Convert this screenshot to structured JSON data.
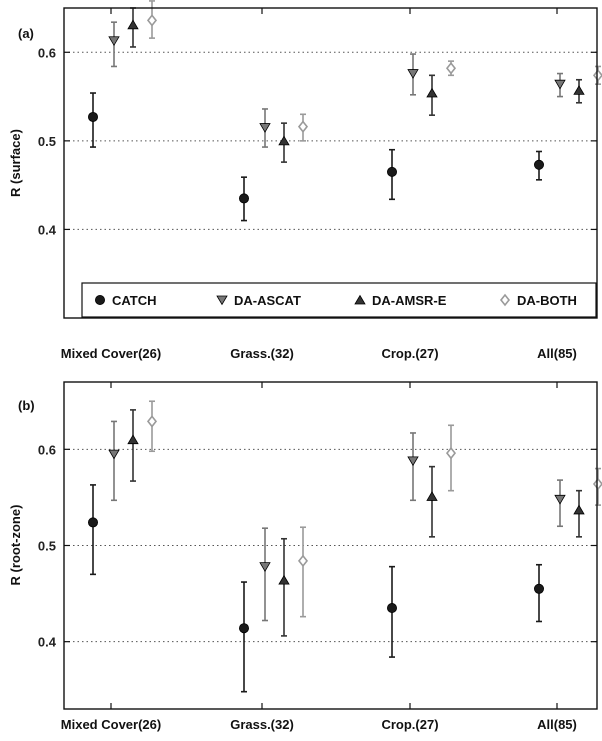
{
  "chart_data": [
    {
      "type": "scatter",
      "panel_label": "(a)",
      "ylabel": "R (surface)",
      "xlabel": "",
      "ylim": [
        0.3,
        0.65
      ],
      "yticks": [
        0.4,
        0.5,
        0.6
      ],
      "categories": [
        "Mixed Cover(26)",
        "Grass.(32)",
        "Crop.(27)",
        "All(85)"
      ],
      "grid": "horizontal-dotted",
      "legend_position": "bottom",
      "series": [
        {
          "name": "CATCH",
          "marker": "circle",
          "color": "#1a1a1a",
          "values": [
            0.527,
            0.435,
            0.465,
            0.473
          ],
          "err_low": [
            0.493,
            0.41,
            0.434,
            0.456
          ],
          "err_high": [
            0.554,
            0.459,
            0.49,
            0.488
          ]
        },
        {
          "name": "DA-ASCAT",
          "marker": "triangle-down",
          "color": "#777777",
          "values": [
            0.613,
            0.515,
            0.576,
            0.564
          ],
          "err_low": [
            0.584,
            0.493,
            0.552,
            0.55
          ],
          "err_high": [
            0.634,
            0.536,
            0.598,
            0.576
          ]
        },
        {
          "name": "DA-AMSR-E",
          "marker": "triangle-up",
          "color": "#333333",
          "values": [
            0.631,
            0.5,
            0.554,
            0.557
          ],
          "err_low": [
            0.606,
            0.476,
            0.529,
            0.543
          ],
          "err_high": [
            0.65,
            0.52,
            0.574,
            0.569
          ]
        },
        {
          "name": "DA-BOTH",
          "marker": "diamond",
          "color": "#9a9a9a",
          "values": [
            0.636,
            0.516,
            0.582,
            0.574
          ],
          "err_low": [
            0.616,
            0.5,
            0.574,
            0.564
          ],
          "err_high": [
            0.658,
            0.53,
            0.59,
            0.584
          ]
        }
      ]
    },
    {
      "type": "scatter",
      "panel_label": "(b)",
      "ylabel": "R (root-zone)",
      "xlabel": "",
      "ylim": [
        0.33,
        0.67
      ],
      "yticks": [
        0.4,
        0.5,
        0.6
      ],
      "categories": [
        "Mixed Cover(26)",
        "Grass.(32)",
        "Crop.(27)",
        "All(85)"
      ],
      "grid": "horizontal-dotted",
      "legend_position": "none",
      "series": [
        {
          "name": "CATCH",
          "marker": "circle",
          "color": "#1a1a1a",
          "values": [
            0.524,
            0.414,
            0.435,
            0.455
          ],
          "err_low": [
            0.47,
            0.348,
            0.384,
            0.421
          ],
          "err_high": [
            0.563,
            0.462,
            0.478,
            0.48
          ]
        },
        {
          "name": "DA-ASCAT",
          "marker": "triangle-down",
          "color": "#777777",
          "values": [
            0.595,
            0.478,
            0.588,
            0.548
          ],
          "err_low": [
            0.547,
            0.422,
            0.547,
            0.52
          ],
          "err_high": [
            0.629,
            0.518,
            0.617,
            0.568
          ]
        },
        {
          "name": "DA-AMSR-E",
          "marker": "triangle-up",
          "color": "#333333",
          "values": [
            0.61,
            0.464,
            0.551,
            0.537
          ],
          "err_low": [
            0.567,
            0.406,
            0.509,
            0.509
          ],
          "err_high": [
            0.641,
            0.507,
            0.582,
            0.557
          ]
        },
        {
          "name": "DA-BOTH",
          "marker": "diamond",
          "color": "#9a9a9a",
          "values": [
            0.629,
            0.484,
            0.596,
            0.564
          ],
          "err_low": [
            0.598,
            0.426,
            0.557,
            0.542
          ],
          "err_high": [
            0.65,
            0.519,
            0.625,
            0.58
          ]
        }
      ]
    }
  ]
}
